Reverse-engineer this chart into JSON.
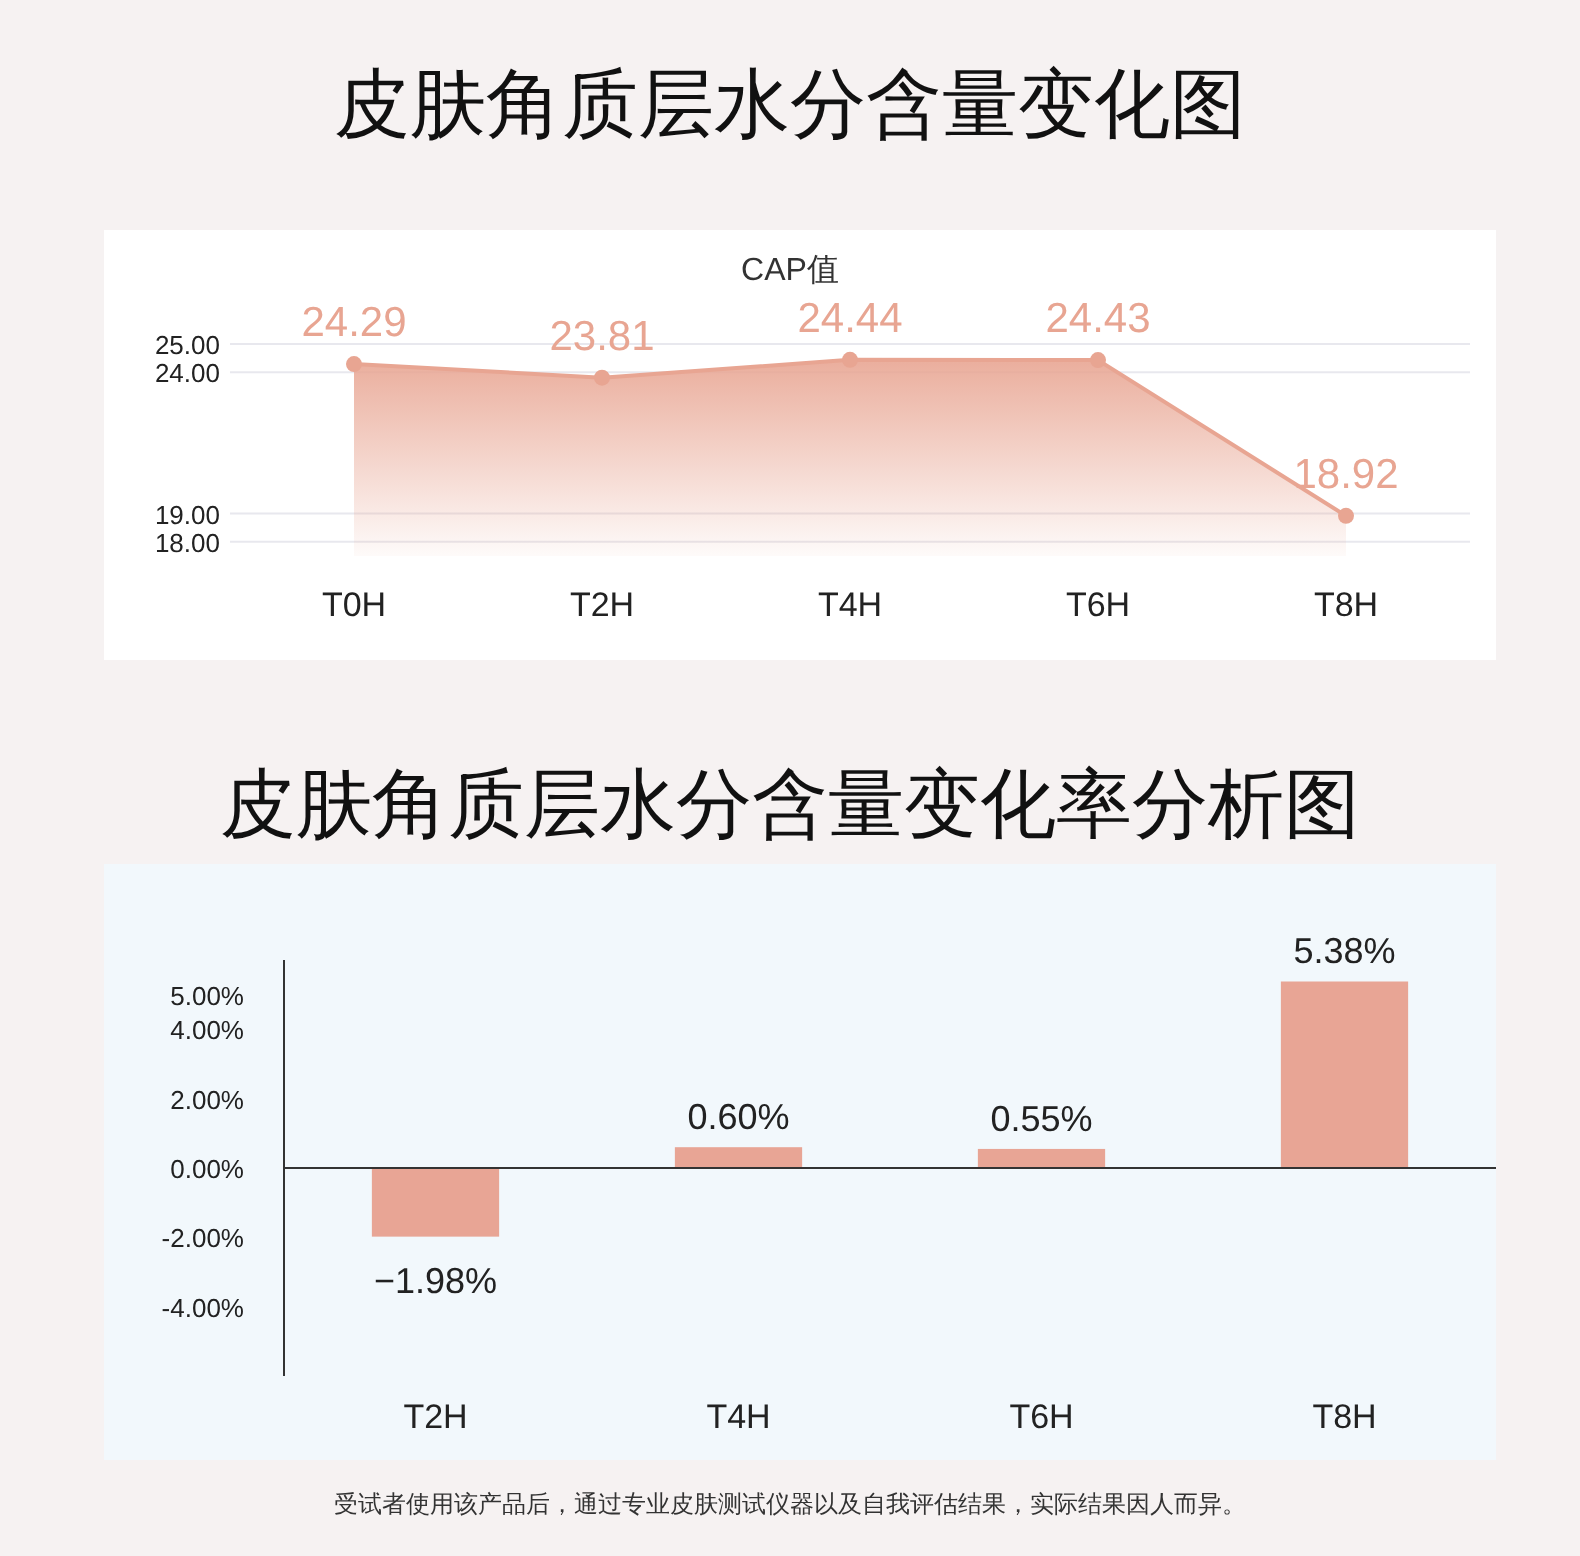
{
  "chart_data": [
    {
      "type": "area",
      "title": "皮肤角质层水分含量变化图",
      "subtitle": "CAP值",
      "categories": [
        "T0H",
        "T2H",
        "T4H",
        "T6H",
        "T8H"
      ],
      "values": [
        24.29,
        23.81,
        24.44,
        24.43,
        18.92
      ],
      "color": "#e8a592",
      "ylim": [
        17.5,
        25
      ],
      "yticks": [
        {
          "value": 18,
          "label": "18.00"
        },
        {
          "value": 19,
          "label": "19.00"
        },
        {
          "value": 24,
          "label": "24.00"
        },
        {
          "value": 25,
          "label": "25.00"
        }
      ],
      "grid": "y",
      "data_labels": true,
      "marker": "circle"
    },
    {
      "type": "bar",
      "title": "皮肤角质层水分含量变化率分析图",
      "categories": [
        "T2H",
        "T4H",
        "T6H",
        "T8H"
      ],
      "values": [
        -1.98,
        0.6,
        0.55,
        5.38
      ],
      "value_labels": [
        "−1.98%",
        "0.60%",
        "0.55%",
        "5.38%"
      ],
      "color": "#e8a595",
      "ylim": [
        -6,
        6
      ],
      "yticks": [
        {
          "value": -4,
          "label": "-4.00%"
        },
        {
          "value": -2,
          "label": "-2.00%"
        },
        {
          "value": 0,
          "label": "0.00%"
        },
        {
          "value": 2,
          "label": "2.00%"
        },
        {
          "value": 4,
          "label": "4.00%"
        },
        {
          "value": 5,
          "label": "5.00%"
        }
      ],
      "annotations": [
        "受试者使用该产品后，通过专业皮肤测试仪器以及自我评估结果，实际结果因人而异。"
      ]
    }
  ]
}
